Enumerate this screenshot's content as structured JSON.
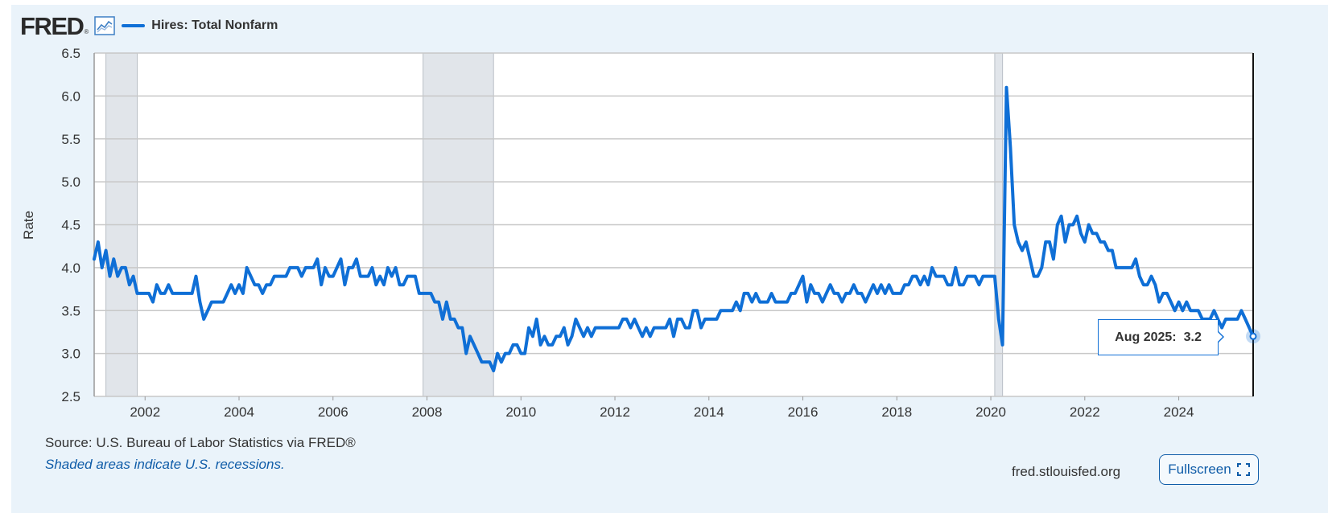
{
  "logo": {
    "text": "FRED",
    "reg": "®"
  },
  "icons": {
    "graph": "line-graph-icon",
    "fullscreen": "expand-corners-icon"
  },
  "legend": {
    "label": "Hires: Total Nonfarm",
    "color": "#0f6fd6"
  },
  "tooltip": {
    "date": "Aug 2025:",
    "value": "3.2"
  },
  "footer": {
    "source": "U.S. Bureau of Labor Statistics via FRED®",
    "source_label": "Source:",
    "recession_note": "Shaded areas indicate U.S. recessions.",
    "site": "fred.stlouisfed.org",
    "fullscreen_label": "Fullscreen"
  },
  "colors": {
    "background": "#eaf3fa",
    "plot_background": "#ffffff",
    "line": "#0f6fd6",
    "recession": "#e1e5ea",
    "grid": "#c8c8c8"
  },
  "chart_data": {
    "type": "line",
    "title": "",
    "ylabel": "Rate",
    "xlabel": "",
    "ylim": [
      2.5,
      6.5
    ],
    "xlim": [
      "2000-12",
      "2025-08"
    ],
    "yticks": [
      "2.5",
      "3.0",
      "3.5",
      "4.0",
      "4.5",
      "5.0",
      "5.5",
      "6.0",
      "6.5"
    ],
    "xticks": [
      "2002",
      "2004",
      "2006",
      "2008",
      "2010",
      "2012",
      "2014",
      "2016",
      "2018",
      "2020",
      "2022",
      "2024"
    ],
    "grid": true,
    "legend_position": "top-left",
    "recessions": [
      [
        "2001-03",
        "2001-11"
      ],
      [
        "2007-12",
        "2009-06"
      ],
      [
        "2020-02",
        "2020-04"
      ]
    ],
    "series": [
      {
        "name": "Hires: Total Nonfarm",
        "start": "2000-12",
        "frequency": "monthly",
        "values": [
          4.1,
          4.3,
          4.0,
          4.2,
          3.9,
          4.1,
          3.9,
          4.0,
          4.0,
          3.8,
          3.9,
          3.7,
          3.7,
          3.7,
          3.7,
          3.6,
          3.8,
          3.7,
          3.7,
          3.8,
          3.7,
          3.7,
          3.7,
          3.7,
          3.7,
          3.7,
          3.9,
          3.6,
          3.4,
          3.5,
          3.6,
          3.6,
          3.6,
          3.6,
          3.7,
          3.8,
          3.7,
          3.8,
          3.7,
          4.0,
          3.9,
          3.8,
          3.8,
          3.7,
          3.8,
          3.8,
          3.9,
          3.9,
          3.9,
          3.9,
          4.0,
          4.0,
          4.0,
          3.9,
          4.0,
          4.0,
          4.0,
          4.1,
          3.8,
          4.0,
          3.9,
          3.9,
          4.0,
          4.1,
          3.8,
          4.0,
          4.0,
          4.1,
          3.9,
          3.9,
          3.9,
          4.0,
          3.8,
          3.9,
          3.8,
          4.0,
          3.9,
          4.0,
          3.8,
          3.8,
          3.9,
          3.9,
          3.9,
          3.7,
          3.7,
          3.7,
          3.7,
          3.6,
          3.6,
          3.4,
          3.6,
          3.4,
          3.4,
          3.3,
          3.3,
          3.0,
          3.2,
          3.1,
          3.0,
          2.9,
          2.9,
          2.9,
          2.8,
          3.0,
          2.9,
          3.0,
          3.0,
          3.1,
          3.1,
          3.0,
          3.0,
          3.3,
          3.2,
          3.4,
          3.1,
          3.2,
          3.1,
          3.1,
          3.2,
          3.2,
          3.3,
          3.1,
          3.2,
          3.4,
          3.3,
          3.2,
          3.3,
          3.2,
          3.3,
          3.3,
          3.3,
          3.3,
          3.3,
          3.3,
          3.3,
          3.4,
          3.4,
          3.3,
          3.4,
          3.3,
          3.2,
          3.3,
          3.2,
          3.3,
          3.3,
          3.3,
          3.3,
          3.4,
          3.2,
          3.4,
          3.4,
          3.3,
          3.3,
          3.5,
          3.5,
          3.3,
          3.4,
          3.4,
          3.4,
          3.4,
          3.5,
          3.5,
          3.5,
          3.5,
          3.6,
          3.5,
          3.7,
          3.7,
          3.6,
          3.7,
          3.6,
          3.6,
          3.6,
          3.7,
          3.6,
          3.6,
          3.6,
          3.6,
          3.7,
          3.7,
          3.8,
          3.9,
          3.6,
          3.8,
          3.7,
          3.7,
          3.6,
          3.7,
          3.8,
          3.7,
          3.7,
          3.6,
          3.7,
          3.7,
          3.8,
          3.7,
          3.7,
          3.6,
          3.7,
          3.8,
          3.7,
          3.8,
          3.7,
          3.8,
          3.7,
          3.7,
          3.7,
          3.8,
          3.8,
          3.9,
          3.9,
          3.8,
          3.9,
          3.8,
          4.0,
          3.9,
          3.9,
          3.9,
          3.8,
          3.8,
          4.0,
          3.8,
          3.8,
          3.9,
          3.9,
          3.9,
          3.8,
          3.9,
          3.9,
          3.9,
          3.9,
          3.4,
          3.1,
          6.1,
          5.4,
          4.5,
          4.3,
          4.2,
          4.3,
          4.1,
          3.9,
          3.9,
          4.0,
          4.3,
          4.3,
          4.1,
          4.5,
          4.6,
          4.3,
          4.5,
          4.5,
          4.6,
          4.4,
          4.3,
          4.5,
          4.4,
          4.4,
          4.3,
          4.3,
          4.2,
          4.2,
          4.0,
          4.0,
          4.0,
          4.0,
          4.0,
          4.1,
          3.9,
          3.8,
          3.8,
          3.9,
          3.8,
          3.6,
          3.7,
          3.7,
          3.6,
          3.5,
          3.6,
          3.5,
          3.6,
          3.5,
          3.5,
          3.5,
          3.4,
          3.4,
          3.4,
          3.5,
          3.4,
          3.3,
          3.4,
          3.4,
          3.4,
          3.4,
          3.5,
          3.4,
          3.3,
          3.2
        ]
      }
    ],
    "highlight": {
      "x": "2025-08",
      "y": 3.2
    }
  }
}
